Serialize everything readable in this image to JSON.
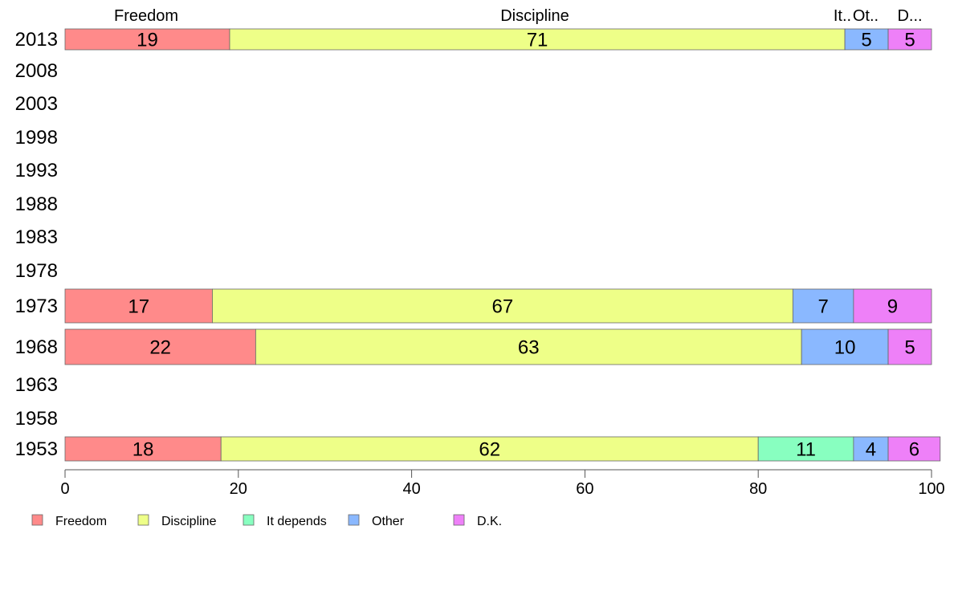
{
  "chart_data": {
    "type": "bar",
    "orientation": "horizontal",
    "stacked": true,
    "categories": [
      "2013",
      "2008",
      "2003",
      "1998",
      "1993",
      "1988",
      "1983",
      "1978",
      "1973",
      "1968",
      "1963",
      "1958",
      "1953"
    ],
    "series": [
      {
        "name": "Freedom",
        "color": "#FF8A8A",
        "values": [
          19,
          null,
          null,
          null,
          null,
          null,
          null,
          null,
          17,
          22,
          null,
          null,
          18
        ]
      },
      {
        "name": "Discipline",
        "color": "#EEFF88",
        "values": [
          71,
          null,
          null,
          null,
          null,
          null,
          null,
          null,
          67,
          63,
          null,
          null,
          62
        ]
      },
      {
        "name": "It depends",
        "color": "#88FFC0",
        "values": [
          0,
          null,
          null,
          null,
          null,
          null,
          null,
          null,
          0,
          0,
          null,
          null,
          11
        ]
      },
      {
        "name": "Other",
        "color": "#8AB8FF",
        "values": [
          5,
          null,
          null,
          null,
          null,
          null,
          null,
          null,
          7,
          10,
          null,
          null,
          4
        ]
      },
      {
        "name": "D.K.",
        "color": "#EE80F8",
        "values": [
          5,
          null,
          null,
          null,
          null,
          null,
          null,
          null,
          9,
          5,
          null,
          null,
          6
        ]
      }
    ],
    "top_labels": [
      "Freedom",
      "Discipline",
      "It..",
      "Ot..",
      "D..."
    ],
    "xlim": [
      0,
      100
    ],
    "xticks": [
      0,
      20,
      40,
      60,
      80,
      100
    ],
    "title": "",
    "xlabel": "",
    "ylabel": "",
    "grid": false,
    "legend_position": "bottom-left"
  }
}
